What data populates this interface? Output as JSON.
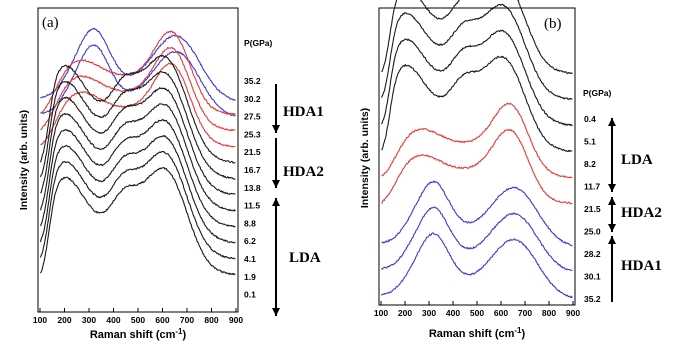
{
  "chart_data": [
    {
      "type": "line",
      "panel_label": "(a)",
      "xlabel": "Raman shift (cm",
      "xlabel_sup": "-1",
      "xlabel_close": ")",
      "ylabel": "Intensity (arb. units)",
      "xlim": [
        100,
        900
      ],
      "xticks": [
        "100",
        "200",
        "300",
        "400",
        "500",
        "600",
        "700",
        "800",
        "900"
      ],
      "pressure_header": "P(GPa)",
      "colors": {
        "red": "#e53a3a",
        "blue": "#3b3bd6",
        "black": "#1a1a1a"
      },
      "series": [
        {
          "pressure": "35.2",
          "color": "blue",
          "shape": "hda1"
        },
        {
          "pressure": "30.2",
          "color": "blue",
          "shape": "hda1"
        },
        {
          "pressure": "27.5",
          "color": "red",
          "shape": "hda2"
        },
        {
          "pressure": "25.3",
          "color": "red",
          "shape": "hda2"
        },
        {
          "pressure": "21.5",
          "color": "red",
          "shape": "hda2"
        },
        {
          "pressure": "16.7",
          "color": "black",
          "shape": "lda"
        },
        {
          "pressure": "13.8",
          "color": "black",
          "shape": "lda"
        },
        {
          "pressure": "11.5",
          "color": "black",
          "shape": "lda"
        },
        {
          "pressure": "8.8",
          "color": "black",
          "shape": "lda"
        },
        {
          "pressure": "6.2",
          "color": "black",
          "shape": "lda"
        },
        {
          "pressure": "4.1",
          "color": "black",
          "shape": "lda"
        },
        {
          "pressure": "1.9",
          "color": "black",
          "shape": "lda"
        },
        {
          "pressure": "0.1",
          "color": "black",
          "shape": "lda"
        }
      ],
      "phases": [
        {
          "label": "HDA1",
          "arrow": "down"
        },
        {
          "label": "HDA2",
          "arrow": "down"
        },
        {
          "label": "LDA",
          "arrow": "both"
        }
      ]
    },
    {
      "type": "line",
      "panel_label": "(b)",
      "xlabel": "Raman shift (cm",
      "xlabel_sup": "-1",
      "xlabel_close": ")",
      "ylabel": "Intensity (arb. units)",
      "xlim": [
        100,
        900
      ],
      "xticks": [
        "100",
        "200",
        "300",
        "400",
        "500",
        "600",
        "700",
        "800",
        "900"
      ],
      "pressure_header": "P(GPa)",
      "colors": {
        "red": "#e53a3a",
        "blue": "#3b3bd6",
        "black": "#1a1a1a"
      },
      "series": [
        {
          "pressure": "0.4",
          "color": "black",
          "shape": "lda"
        },
        {
          "pressure": "5.1",
          "color": "black",
          "shape": "lda"
        },
        {
          "pressure": "8.2",
          "color": "black",
          "shape": "lda"
        },
        {
          "pressure": "11.7",
          "color": "black",
          "shape": "lda"
        },
        {
          "pressure": "21.5",
          "color": "red",
          "shape": "hda2"
        },
        {
          "pressure": "25.0",
          "color": "red",
          "shape": "hda2"
        },
        {
          "pressure": "28.2",
          "color": "blue",
          "shape": "hda1"
        },
        {
          "pressure": "30.1",
          "color": "blue",
          "shape": "hda1"
        },
        {
          "pressure": "35.2",
          "color": "blue",
          "shape": "hda1"
        }
      ],
      "phases": [
        {
          "label": "LDA",
          "arrow": "both"
        },
        {
          "label": "HDA2",
          "arrow": "both"
        },
        {
          "label": "HDA1",
          "arrow": "up"
        }
      ]
    }
  ]
}
